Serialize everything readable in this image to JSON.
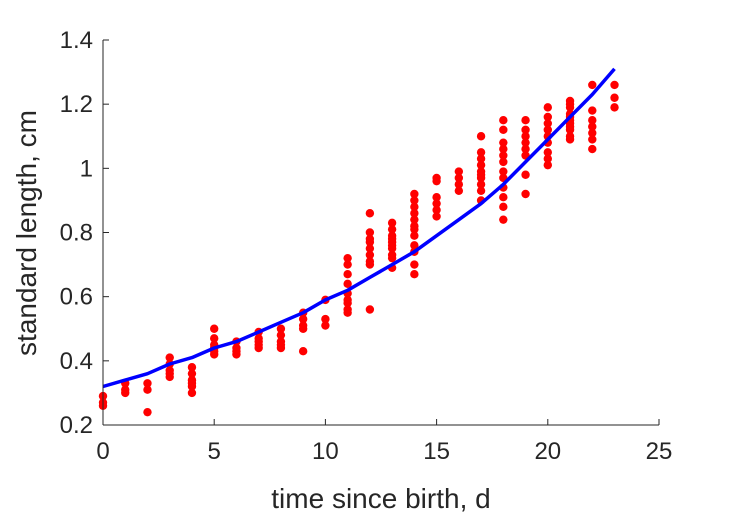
{
  "chart_data": {
    "type": "scatter",
    "xlabel": "time since birth, d",
    "ylabel": "standard length, cm",
    "xlim": [
      0,
      25
    ],
    "ylim": [
      0.2,
      1.4
    ],
    "x_ticks": [
      0,
      5,
      10,
      15,
      20,
      25
    ],
    "x_tick_labels": [
      "0",
      "5",
      "10",
      "15",
      "20",
      "25"
    ],
    "y_ticks": [
      0.2,
      0.4,
      0.6,
      0.8,
      1.0,
      1.2,
      1.4
    ],
    "y_tick_labels": [
      "0.2",
      "0.4",
      "0.6",
      "0.8",
      "1",
      "1.2",
      "1.4"
    ],
    "grid": false,
    "legend": "none",
    "series": [
      {
        "type": "scatter",
        "color": "#ff0000",
        "x": [
          0,
          0,
          0,
          1,
          1,
          1,
          2,
          2,
          2,
          3,
          3,
          3,
          3,
          3,
          4,
          4,
          4,
          4,
          4,
          4,
          5,
          5,
          5,
          5,
          5,
          5,
          6,
          6,
          6,
          6,
          7,
          7,
          7,
          7,
          7,
          8,
          8,
          8,
          8,
          8,
          9,
          9,
          9,
          9,
          9,
          10,
          10,
          10,
          11,
          11,
          11,
          11,
          11,
          11,
          11,
          11,
          11,
          12,
          12,
          12,
          12,
          12,
          12,
          12,
          12,
          12,
          13,
          13,
          13,
          13,
          13,
          13,
          13,
          13,
          13,
          13,
          14,
          14,
          14,
          14,
          14,
          14,
          14,
          14,
          14,
          14,
          14,
          14,
          15,
          15,
          15,
          15,
          15,
          15,
          16,
          16,
          16,
          16,
          17,
          17,
          17,
          17,
          17,
          17,
          17,
          17,
          17,
          17,
          18,
          18,
          18,
          18,
          18,
          18,
          18,
          18,
          18,
          18,
          18,
          18,
          19,
          19,
          19,
          19,
          19,
          19,
          19,
          19,
          20,
          20,
          20,
          20,
          20,
          20,
          20,
          20,
          20,
          21,
          21,
          21,
          21,
          21,
          21,
          21,
          21,
          21,
          21,
          21,
          22,
          22,
          22,
          22,
          22,
          22,
          22,
          23,
          23,
          23
        ],
        "y": [
          0.29,
          0.27,
          0.26,
          0.33,
          0.31,
          0.3,
          0.33,
          0.31,
          0.24,
          0.41,
          0.39,
          0.37,
          0.36,
          0.35,
          0.38,
          0.36,
          0.34,
          0.32,
          0.3,
          0.33,
          0.5,
          0.47,
          0.45,
          0.43,
          0.42,
          0.44,
          0.46,
          0.44,
          0.42,
          0.43,
          0.49,
          0.47,
          0.45,
          0.44,
          0.46,
          0.5,
          0.48,
          0.46,
          0.44,
          0.45,
          0.55,
          0.53,
          0.51,
          0.5,
          0.43,
          0.59,
          0.53,
          0.51,
          0.72,
          0.7,
          0.67,
          0.64,
          0.61,
          0.59,
          0.56,
          0.55,
          0.58,
          0.86,
          0.8,
          0.78,
          0.77,
          0.75,
          0.73,
          0.71,
          0.7,
          0.56,
          0.83,
          0.81,
          0.79,
          0.78,
          0.76,
          0.75,
          0.73,
          0.72,
          0.69,
          0.77,
          0.92,
          0.9,
          0.88,
          0.86,
          0.84,
          0.82,
          0.79,
          0.76,
          0.74,
          0.7,
          0.67,
          0.81,
          0.97,
          0.96,
          0.91,
          0.89,
          0.87,
          0.85,
          0.99,
          0.97,
          0.95,
          0.93,
          1.1,
          1.05,
          1.03,
          1.01,
          0.99,
          0.97,
          0.95,
          0.93,
          0.9,
          0.98,
          1.15,
          1.12,
          1.08,
          1.06,
          1.04,
          1.02,
          0.99,
          0.97,
          0.94,
          0.91,
          0.88,
          0.84,
          1.15,
          1.12,
          1.1,
          1.08,
          1.06,
          1.04,
          0.98,
          0.92,
          1.19,
          1.16,
          1.14,
          1.12,
          1.1,
          1.08,
          1.05,
          1.03,
          1.01,
          1.21,
          1.19,
          1.17,
          1.16,
          1.15,
          1.13,
          1.12,
          1.1,
          1.09,
          1.2,
          1.14,
          1.26,
          1.18,
          1.15,
          1.13,
          1.11,
          1.09,
          1.06,
          1.26,
          1.22,
          1.19
        ]
      },
      {
        "type": "line",
        "color": "#0000ff",
        "x": [
          0,
          1,
          2,
          3,
          4,
          5,
          6,
          7,
          8,
          9,
          10,
          11,
          12,
          13,
          14,
          15,
          16,
          17,
          18,
          19,
          20,
          21,
          22,
          23
        ],
        "y": [
          0.32,
          0.34,
          0.36,
          0.39,
          0.41,
          0.44,
          0.46,
          0.49,
          0.52,
          0.55,
          0.59,
          0.62,
          0.66,
          0.7,
          0.74,
          0.79,
          0.84,
          0.89,
          0.95,
          1.02,
          1.09,
          1.16,
          1.23,
          1.31
        ]
      }
    ]
  }
}
